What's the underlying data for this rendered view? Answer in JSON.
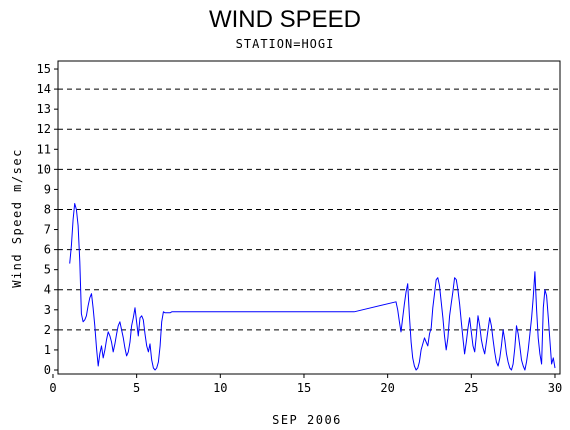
{
  "chart_data": {
    "type": "line",
    "title": "WIND SPEED",
    "subtitle": "STATION=HOGI",
    "xlabel": "SEP 2006",
    "ylabel": "Wind Speed m/sec",
    "xlim": [
      0.3,
      30.3
    ],
    "ylim": [
      -0.2,
      15.4
    ],
    "xticks": [
      0,
      5,
      10,
      15,
      20,
      25,
      30
    ],
    "yticks": [
      0,
      1,
      2,
      3,
      4,
      5,
      6,
      7,
      8,
      9,
      10,
      11,
      12,
      13,
      14,
      15
    ],
    "grid_y_dashed": [
      2,
      4,
      6,
      8,
      10,
      12,
      14
    ],
    "line_color": "#0000ff",
    "series": [
      {
        "x": [
          1.0,
          1.1,
          1.2,
          1.3,
          1.4,
          1.5,
          1.6,
          1.7,
          1.8,
          1.9,
          2.0,
          2.1,
          2.2,
          2.3,
          2.4,
          2.5,
          2.6,
          2.7,
          2.8,
          2.9,
          3.0,
          3.1,
          3.2,
          3.3,
          3.4,
          3.5,
          3.6,
          3.7,
          3.8,
          3.9,
          4.0,
          4.1,
          4.2,
          4.3,
          4.4,
          4.5,
          4.6,
          4.7,
          4.8,
          4.9,
          5.0,
          5.1,
          5.2,
          5.3,
          5.4,
          5.5,
          5.6,
          5.7,
          5.8,
          5.9,
          6.0,
          6.1,
          6.2,
          6.3,
          6.4,
          6.5,
          6.6,
          6.7,
          6.8,
          6.9,
          7.0,
          7.1,
          7.2,
          7.3,
          7.4,
          7.5,
          7.6,
          8.0,
          10.0,
          14.0,
          18.0,
          20.5,
          20.6,
          20.7,
          20.8,
          20.9,
          21.0,
          21.1,
          21.2,
          21.3,
          21.4,
          21.5,
          21.6,
          21.7,
          21.8,
          21.9,
          22.0,
          22.1,
          22.2,
          22.3,
          22.4,
          22.5,
          22.6,
          22.7,
          22.8,
          22.9,
          23.0,
          23.1,
          23.2,
          23.3,
          23.4,
          23.5,
          23.6,
          23.7,
          23.8,
          23.9,
          24.0,
          24.1,
          24.2,
          24.3,
          24.4,
          24.5,
          24.6,
          24.7,
          24.8,
          24.9,
          25.0,
          25.1,
          25.2,
          25.3,
          25.4,
          25.5,
          25.6,
          25.7,
          25.8,
          25.9,
          26.0,
          26.1,
          26.2,
          26.3,
          26.4,
          26.5,
          26.6,
          26.7,
          26.8,
          26.9,
          27.0,
          27.1,
          27.2,
          27.3,
          27.4,
          27.5,
          27.6,
          27.7,
          27.8,
          27.9,
          28.0,
          28.1,
          28.2,
          28.3,
          28.4,
          28.5,
          28.6,
          28.7,
          28.8,
          28.9,
          29.0,
          29.1,
          29.2,
          29.3,
          29.4,
          29.5,
          29.6,
          29.7,
          29.8,
          29.9,
          30.0
        ],
        "y": [
          5.3,
          6.2,
          7.5,
          8.3,
          8.0,
          7.2,
          5.4,
          2.8,
          2.4,
          2.5,
          2.7,
          3.2,
          3.6,
          3.8,
          3.1,
          2.2,
          1.1,
          0.2,
          0.8,
          1.2,
          0.6,
          1.0,
          1.5,
          1.9,
          1.7,
          1.4,
          0.9,
          1.3,
          1.8,
          2.2,
          2.4,
          2.0,
          1.6,
          1.1,
          0.7,
          0.9,
          1.4,
          2.2,
          2.6,
          3.1,
          2.4,
          1.7,
          2.6,
          2.7,
          2.5,
          1.8,
          1.2,
          0.9,
          1.3,
          0.5,
          0.1,
          0.0,
          0.1,
          0.4,
          1.2,
          2.4,
          2.9,
          2.85,
          2.85,
          2.85,
          2.85,
          2.9,
          2.9,
          2.9,
          2.9,
          2.9,
          2.9,
          2.9,
          2.9,
          2.9,
          2.9,
          3.4,
          3.0,
          2.4,
          1.9,
          2.6,
          3.3,
          3.9,
          4.3,
          2.7,
          1.4,
          0.6,
          0.2,
          0.0,
          0.1,
          0.4,
          1.0,
          1.3,
          1.6,
          1.4,
          1.2,
          1.8,
          2.1,
          3.1,
          3.8,
          4.5,
          4.6,
          4.2,
          3.4,
          2.6,
          1.7,
          1.0,
          1.6,
          2.7,
          3.3,
          3.9,
          4.6,
          4.5,
          4.0,
          3.3,
          2.4,
          1.6,
          0.8,
          1.4,
          2.1,
          2.6,
          1.9,
          1.2,
          0.9,
          1.7,
          2.7,
          2.2,
          1.5,
          1.1,
          0.8,
          1.4,
          2.0,
          2.6,
          2.2,
          1.5,
          0.9,
          0.4,
          0.2,
          0.6,
          1.2,
          2.0,
          1.5,
          0.8,
          0.4,
          0.1,
          0.0,
          0.3,
          1.1,
          2.2,
          1.8,
          1.2,
          0.5,
          0.2,
          0.0,
          0.4,
          1.0,
          1.8,
          2.6,
          3.6,
          4.9,
          3.0,
          1.6,
          0.8,
          0.3,
          3.1,
          4.0,
          3.7,
          2.6,
          1.4,
          0.3,
          0.6,
          0.1
        ]
      }
    ]
  }
}
